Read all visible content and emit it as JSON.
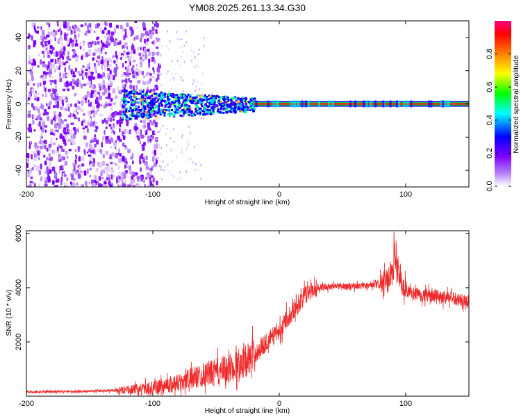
{
  "title": "YM08.2025.261.13.34.G30",
  "chart_data": [
    {
      "type": "heatmap",
      "xlabel": "Height of straight line (km)",
      "ylabel": "Frequency (Hz)",
      "xlim": [
        -200,
        150
      ],
      "ylim": [
        -50,
        50
      ],
      "xticks": [
        -200,
        -100,
        0,
        100
      ],
      "yticks": [
        -40,
        -20,
        0,
        20,
        40
      ],
      "colorbar": {
        "label": "Normalized spectral amplitude",
        "range": [
          0,
          1
        ],
        "ticks": [
          "0.0",
          "0.2",
          "0.4",
          "0.6",
          "0.8"
        ],
        "colormap": [
          "#ffffff",
          "#b380f5",
          "#7f00ff",
          "#0000ff",
          "#00ffff",
          "#00ff00",
          "#ffff00",
          "#ff8000",
          "#ff0000",
          "#ff0080"
        ]
      },
      "features": {
        "noise_region_km": [
          -200,
          -100
        ],
        "scatter_region_km": [
          -100,
          -60
        ],
        "band_broadening_km": [
          -125,
          -20
        ],
        "carrier_line_start_km": -20,
        "carrier_freq_hz": 0
      }
    },
    {
      "type": "line",
      "xlabel": "Height of straight line (km)",
      "ylabel": "SNR (10 * v/v)",
      "xlim": [
        -200,
        150
      ],
      "ylim": [
        0,
        6100
      ],
      "xticks": [
        -200,
        -100,
        0,
        100
      ],
      "yticks": [
        2000,
        4000,
        6000
      ],
      "series": [
        {
          "name": "SNR",
          "color": "#ee2a2a",
          "x": [
            -200,
            -150,
            -125,
            -100,
            -80,
            -60,
            -40,
            -20,
            -10,
            0,
            5,
            10,
            15,
            20,
            25,
            30,
            40,
            60,
            80,
            85,
            90,
            92,
            95,
            100,
            120,
            140,
            150
          ],
          "y": [
            150,
            180,
            220,
            300,
            500,
            800,
            1000,
            1500,
            2000,
            2400,
            2800,
            3100,
            3400,
            3700,
            3900,
            4000,
            4050,
            4050,
            4100,
            4200,
            4600,
            5000,
            4300,
            3800,
            3700,
            3600,
            3500
          ]
        }
      ]
    }
  ]
}
